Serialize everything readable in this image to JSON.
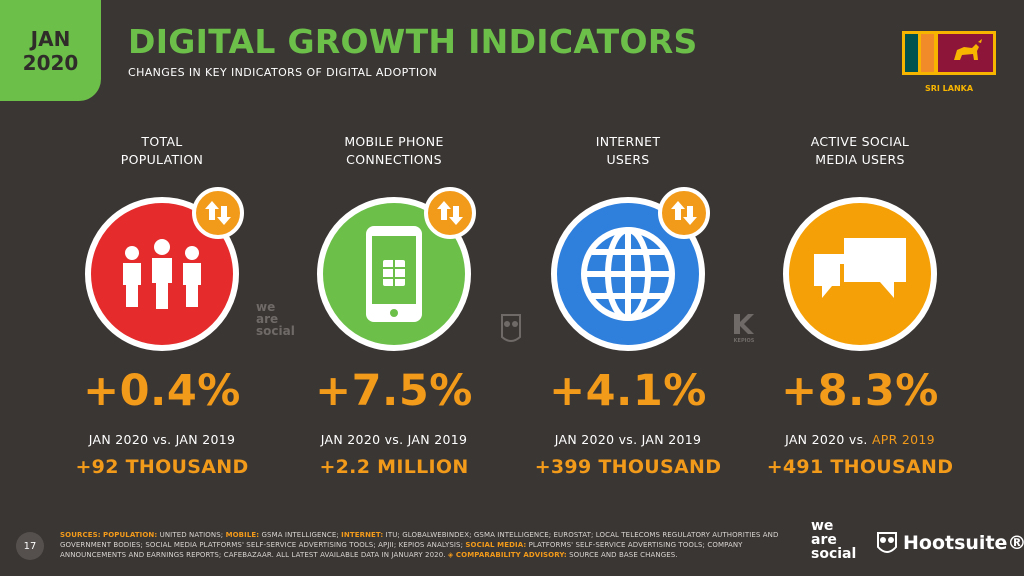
{
  "badge": {
    "month": "JAN",
    "year": "2020"
  },
  "header": {
    "title": "DIGITAL GROWTH INDICATORS",
    "subtitle": "CHANGES IN KEY INDICATORS OF DIGITAL ADOPTION"
  },
  "country": {
    "label": "SRI LANKA"
  },
  "colors": {
    "green": "#6cc04a",
    "orange": "#f29a1a",
    "red": "#e52b2b",
    "blue": "#2f7fdd",
    "amber": "#f5a007",
    "bg": "#3a3634"
  },
  "indicators": [
    {
      "label_line1": "TOTAL",
      "label_line2": "POPULATION",
      "icon": "people-icon",
      "change": "+0.4%",
      "compare_prefix": "JAN 2020 vs. ",
      "compare_suffix": "JAN 2019",
      "absolute": "+92 THOUSAND"
    },
    {
      "label_line1": "MOBILE PHONE",
      "label_line2": "CONNECTIONS",
      "icon": "mobile-phone-icon",
      "change": "+7.5%",
      "compare_prefix": "JAN 2020 vs. ",
      "compare_suffix": "JAN 2019",
      "absolute": "+2.2 MILLION"
    },
    {
      "label_line1": "INTERNET",
      "label_line2": "USERS",
      "icon": "globe-icon",
      "change": "+4.1%",
      "compare_prefix": "JAN 2020 vs. ",
      "compare_suffix": "JAN 2019",
      "absolute": "+399 THOUSAND"
    },
    {
      "label_line1": "ACTIVE SOCIAL",
      "label_line2": "MEDIA USERS",
      "icon": "chat-bubbles-icon",
      "change": "+8.3%",
      "compare_prefix": "JAN 2020 vs. ",
      "compare_suffix": "APR 2019",
      "absolute": "+491 THOUSAND"
    }
  ],
  "watermarks": {
    "was_line1": "we",
    "was_line2": "are",
    "was_line3": "social",
    "kepios": "KEPIOS"
  },
  "footer": {
    "page": "17",
    "sources_label": "SOURCES:",
    "population_label": "POPULATION:",
    "population_text": " UNITED NATIONS; ",
    "mobile_label": "MOBILE:",
    "mobile_text": " GSMA INTELLIGENCE; ",
    "internet_label": "INTERNET:",
    "internet_text": " ITU; GLOBALWEBINDEX; GSMA INTELLIGENCE; EUROSTAT; LOCAL TELECOMS REGULATORY AUTHORITIES AND GOVERNMENT BODIES; SOCIAL MEDIA PLATFORMS' SELF-SERVICE ADVERTISING TOOLS; APJII; KEPIOS ANALYSIS; ",
    "social_label": "SOCIAL MEDIA:",
    "social_text": " PLATFORMS' SELF-SERVICE ADVERTISING TOOLS; COMPANY ANNOUNCEMENTS AND EARNINGS REPORTS; CAFEBAZAAR. ALL LATEST AVAILABLE DATA IN JANUARY 2020. ",
    "advisory_label": "◈ COMPARABILITY ADVISORY:",
    "advisory_text": " SOURCE AND BASE CHANGES.",
    "logo_was_line1": "we",
    "logo_was_line2": "are",
    "logo_was_line3": "social",
    "logo_hootsuite": "Hootsuite®"
  }
}
